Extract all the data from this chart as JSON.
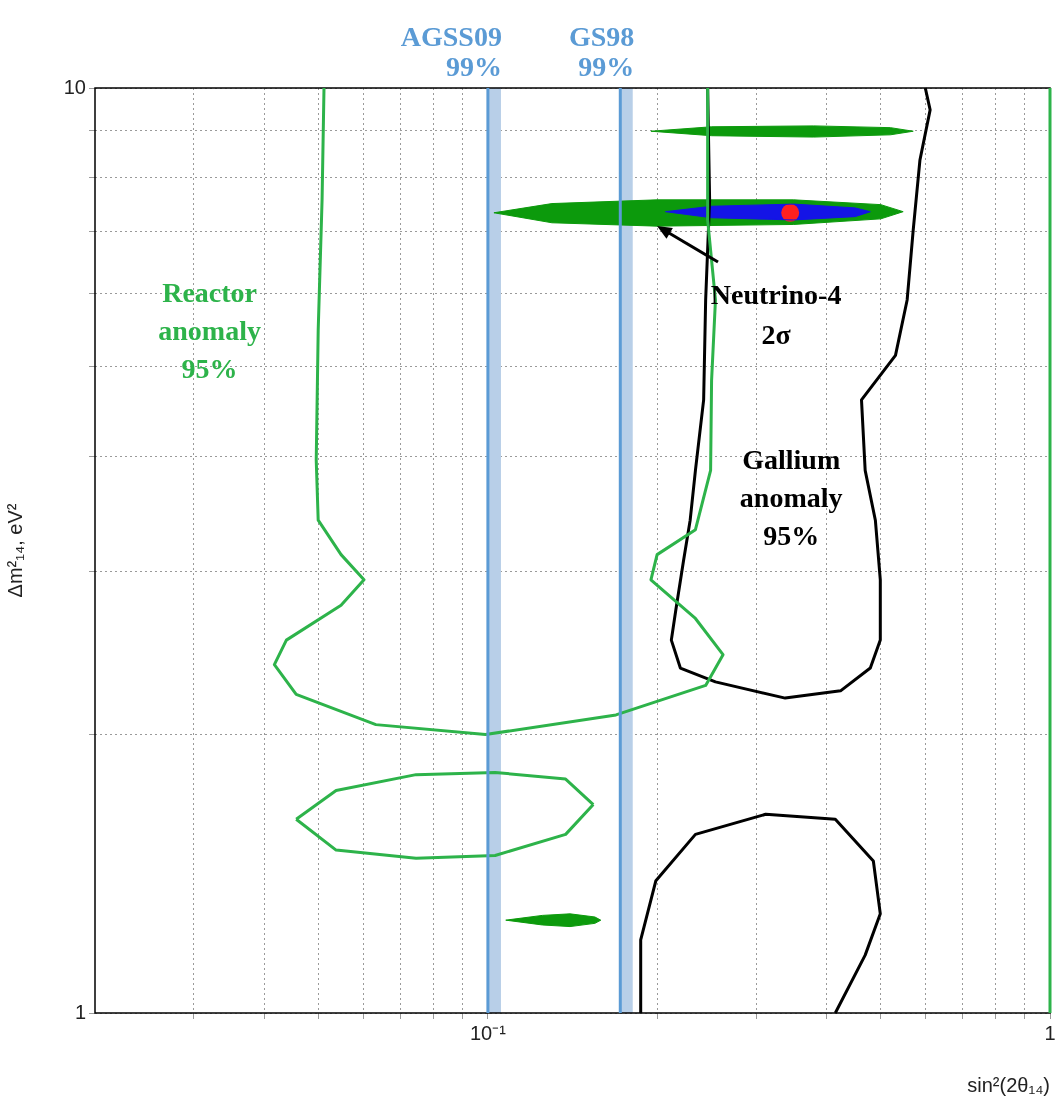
{
  "chart_data": {
    "type": "line",
    "xlabel": "sin²(2θ₁₄)",
    "ylabel": "Δm²₁₄, eV²",
    "log": "xy",
    "grid": true,
    "legend": false,
    "xlim": [
      0.02,
      1
    ],
    "ylim": [
      1,
      10
    ],
    "xticks": [
      {
        "value": 0.03,
        "label": null
      },
      {
        "value": 0.04,
        "label": null
      },
      {
        "value": 0.05,
        "label": null
      },
      {
        "value": 0.06,
        "label": null
      },
      {
        "value": 0.07,
        "label": null
      },
      {
        "value": 0.08,
        "label": null
      },
      {
        "value": 0.09,
        "label": null
      },
      {
        "value": 0.1,
        "label": "10⁻¹"
      },
      {
        "value": 0.2,
        "label": null
      },
      {
        "value": 0.3,
        "label": null
      },
      {
        "value": 0.4,
        "label": null
      },
      {
        "value": 0.5,
        "label": null
      },
      {
        "value": 0.6,
        "label": null
      },
      {
        "value": 0.7,
        "label": null
      },
      {
        "value": 0.8,
        "label": null
      },
      {
        "value": 0.9,
        "label": null
      },
      1
    ],
    "yticks": [
      1,
      {
        "value": 2,
        "label": null
      },
      {
        "value": 3,
        "label": null
      },
      {
        "value": 4,
        "label": null
      },
      {
        "value": 5,
        "label": null
      },
      {
        "value": 6,
        "label": null
      },
      {
        "value": 7,
        "label": null
      },
      {
        "value": 8,
        "label": null
      },
      {
        "value": 9,
        "label": null
      },
      10
    ],
    "series": [
      {
        "type": "line",
        "name": "Reactor anomaly 95%",
        "color": "#2db34a",
        "x": [
          0.0511,
          0.0507,
          0.0499,
          0.0495,
          0.0499,
          0.0548,
          0.0602,
          0.0548,
          0.0438,
          0.0417,
          0.0456,
          0.0632,
          0.099,
          0.169,
          0.244,
          0.262,
          0.234,
          0.195,
          0.2,
          0.234,
          0.249,
          0.25,
          0.254,
          0.246,
          0.246
        ],
        "values": [
          10,
          7.57,
          5.47,
          3.96,
          3.41,
          3.13,
          2.94,
          2.76,
          2.53,
          2.38,
          2.21,
          2.05,
          2.0,
          2.1,
          2.26,
          2.44,
          2.67,
          2.94,
          3.13,
          3.33,
          3.86,
          4.83,
          5.9,
          7.2,
          10
        ]
      },
      {
        "type": "line",
        "color": "#2db34a",
        "x": [
          0.0456,
          0.0537,
          0.0745,
          0.103,
          0.1375,
          0.154
        ],
        "values": [
          1.62,
          1.74,
          1.81,
          1.82,
          1.79,
          1.68
        ]
      },
      {
        "type": "line",
        "color": "#2db34a",
        "x": [
          0.0456,
          0.0537,
          0.0745,
          0.103,
          0.1375,
          0.154
        ],
        "values": [
          1.62,
          1.5,
          1.47,
          1.48,
          1.56,
          1.68
        ]
      },
      {
        "type": "line",
        "name": "Gallium anomaly 95%",
        "color": "#000000",
        "x": [
          0.246,
          0.248,
          0.244,
          0.242,
          0.234,
          0.229,
          0.223,
          0.216,
          0.212,
          0.22,
          0.254,
          0.338,
          0.424,
          0.479,
          0.499,
          0.499,
          0.489,
          0.469,
          0.462,
          0.531,
          0.557,
          0.571,
          0.587,
          0.612,
          0.6,
          null,
          0.187,
          0.187,
          0.199,
          0.234,
          0.312,
          0.415,
          0.485,
          0.499,
          0.469,
          0.415
        ],
        "values": [
          10,
          7.57,
          5.9,
          4.6,
          3.86,
          3.41,
          3.09,
          2.73,
          2.53,
          2.36,
          2.28,
          2.19,
          2.23,
          2.36,
          2.53,
          2.94,
          3.41,
          3.86,
          4.6,
          5.14,
          5.9,
          7.02,
          8.36,
          9.47,
          10,
          null,
          1,
          1.2,
          1.39,
          1.56,
          1.64,
          1.62,
          1.46,
          1.28,
          1.155,
          1
        ]
      },
      {
        "type": "area",
        "color": "#0c9a0c",
        "x": [
          0.195,
          0.25,
          0.38,
          0.52,
          0.571,
          0.52,
          0.38,
          0.25,
          0.195
        ],
        "values": [
          8.98,
          9.08,
          9.1,
          9.06,
          8.98,
          8.9,
          8.85,
          8.88,
          8.98
        ]
      },
      {
        "type": "area",
        "color": "#0c9a0c",
        "x": [
          0.1025,
          0.13,
          0.2,
          0.35,
          0.5,
          0.548,
          0.5,
          0.35,
          0.2,
          0.13,
          0.1025
        ],
        "values": [
          7.33,
          7.5,
          7.57,
          7.57,
          7.48,
          7.35,
          7.22,
          7.12,
          7.09,
          7.15,
          7.33
        ]
      },
      {
        "type": "area",
        "color": "#1414e6",
        "x": [
          0.207,
          0.25,
          0.35,
          0.45,
          0.479,
          0.45,
          0.35,
          0.25,
          0.207
        ],
        "values": [
          7.35,
          7.45,
          7.49,
          7.42,
          7.35,
          7.26,
          7.2,
          7.24,
          7.35
        ]
      },
      {
        "type": "area",
        "color": "#0c9a0c",
        "x": [
          0.1076,
          0.125,
          0.14,
          0.155,
          0.1588,
          0.155,
          0.14,
          0.125,
          0.1076
        ],
        "values": [
          1.26,
          1.275,
          1.28,
          1.27,
          1.26,
          1.25,
          1.24,
          1.245,
          1.26
        ]
      },
      {
        "type": "scatter",
        "color": "#ff2020",
        "x": [
          0.345
        ],
        "values": [
          7.33
        ]
      }
    ],
    "ref_lines": [
      {
        "axis": "x",
        "value": 0.1,
        "label": "AGSS09 99%",
        "color": "#5b9bd5"
      },
      {
        "axis": "x",
        "value": 0.172,
        "label": "GS98 99%",
        "color": "#5b9bd5"
      },
      {
        "axis": "x",
        "value": 1,
        "color": "#2db34a"
      }
    ],
    "annotations": [
      {
        "text": "Neutrino-4 2σ",
        "x": 0.2,
        "y": 7.09
      }
    ],
    "bands": [
      {
        "axis": "x",
        "from": 0.1,
        "to": 0.1055,
        "color": "#b8cfe8"
      },
      {
        "axis": "x",
        "from": 0.172,
        "to": 0.181,
        "color": "#b8cfe8"
      }
    ]
  }
}
